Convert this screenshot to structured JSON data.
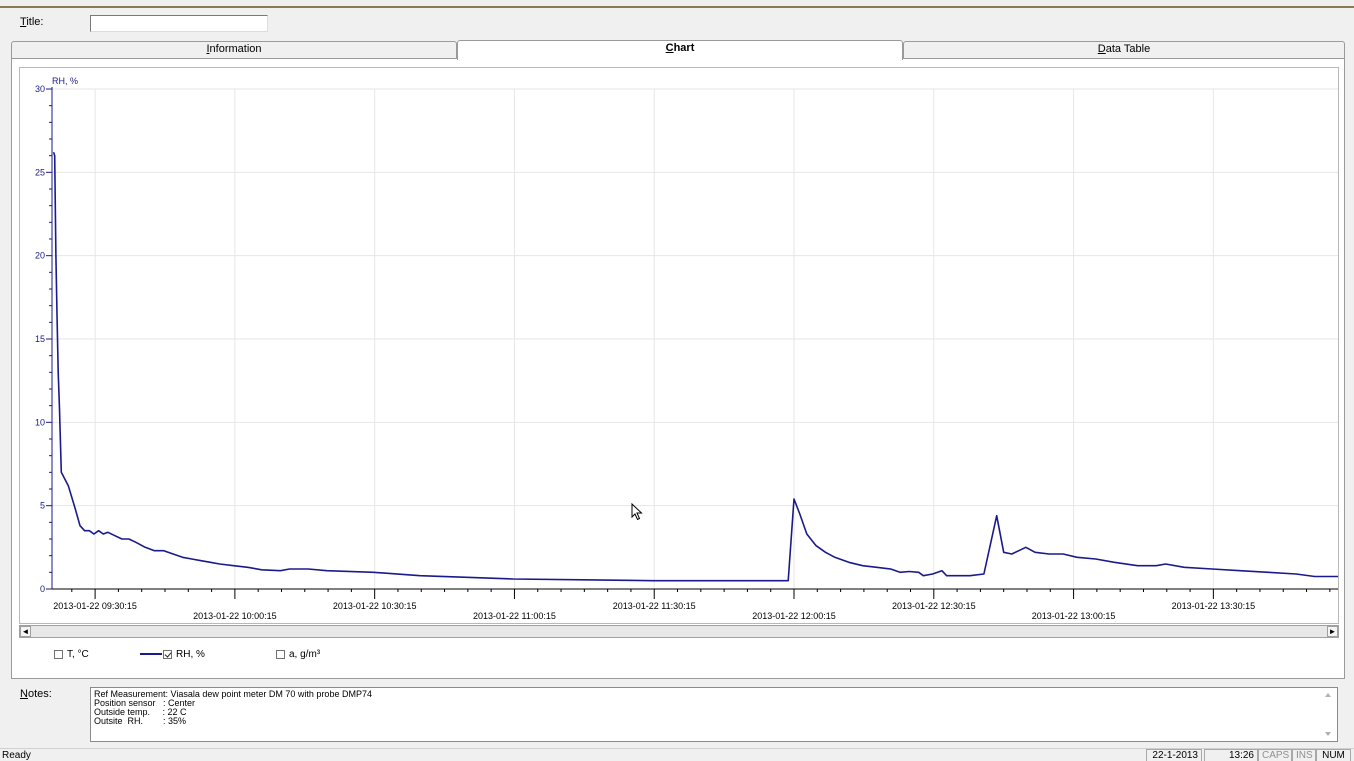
{
  "title_field": {
    "label_first": "T",
    "label_rest": "itle:",
    "value": ""
  },
  "tabs": [
    {
      "first": "I",
      "rest": "nformation",
      "active": false
    },
    {
      "first": "C",
      "rest": "hart",
      "active": true
    },
    {
      "first": "D",
      "rest": "ata Table",
      "active": false
    }
  ],
  "chart_data": {
    "type": "line",
    "ylabel": "RH, %",
    "ylim": [
      0,
      30
    ],
    "yticks": [
      "0",
      "5",
      "10",
      "15",
      "20",
      "25",
      "30"
    ],
    "xlim": [
      "2013-01-22 09:21:00",
      "2013-01-22 13:57:00"
    ],
    "xticks": [
      "2013-01-22 09:30:15",
      "2013-01-22 10:00:15",
      "2013-01-22 10:30:15",
      "2013-01-22 11:00:15",
      "2013-01-22 11:30:15",
      "2013-01-22 12:00:15",
      "2013-01-22 12:30:15",
      "2013-01-22 13:00:15",
      "2013-01-22 13:30:15"
    ],
    "grid": true,
    "series": [
      {
        "name": "RH, %",
        "color": "#1a1a8c",
        "points": [
          [
            "2013-01-22 09:21:20",
            26.2
          ],
          [
            "2013-01-22 09:21:35",
            26.0
          ],
          [
            "2013-01-22 09:21:50",
            20.0
          ],
          [
            "2013-01-22 09:22:05",
            16.5
          ],
          [
            "2013-01-22 09:22:20",
            13.0
          ],
          [
            "2013-01-22 09:22:35",
            11.0
          ],
          [
            "2013-01-22 09:23:00",
            7.0
          ],
          [
            "2013-01-22 09:24:30",
            6.2
          ],
          [
            "2013-01-22 09:26:00",
            4.8
          ],
          [
            "2013-01-22 09:27:00",
            3.8
          ],
          [
            "2013-01-22 09:28:00",
            3.5
          ],
          [
            "2013-01-22 09:29:00",
            3.5
          ],
          [
            "2013-01-22 09:30:00",
            3.3
          ],
          [
            "2013-01-22 09:31:00",
            3.5
          ],
          [
            "2013-01-22 09:32:00",
            3.3
          ],
          [
            "2013-01-22 09:33:00",
            3.4
          ],
          [
            "2013-01-22 09:34:30",
            3.2
          ],
          [
            "2013-01-22 09:36:00",
            3.0
          ],
          [
            "2013-01-22 09:37:30",
            3.0
          ],
          [
            "2013-01-22 09:39:00",
            2.8
          ],
          [
            "2013-01-22 09:41:00",
            2.5
          ],
          [
            "2013-01-22 09:43:00",
            2.3
          ],
          [
            "2013-01-22 09:45:00",
            2.3
          ],
          [
            "2013-01-22 09:47:00",
            2.1
          ],
          [
            "2013-01-22 09:49:00",
            1.9
          ],
          [
            "2013-01-22 09:51:00",
            1.8
          ],
          [
            "2013-01-22 09:53:00",
            1.7
          ],
          [
            "2013-01-22 09:55:00",
            1.6
          ],
          [
            "2013-01-22 09:57:00",
            1.5
          ],
          [
            "2013-01-22 10:00:00",
            1.4
          ],
          [
            "2013-01-22 10:03:00",
            1.3
          ],
          [
            "2013-01-22 10:06:00",
            1.15
          ],
          [
            "2013-01-22 10:10:00",
            1.1
          ],
          [
            "2013-01-22 10:12:00",
            1.2
          ],
          [
            "2013-01-22 10:16:00",
            1.2
          ],
          [
            "2013-01-22 10:20:00",
            1.1
          ],
          [
            "2013-01-22 10:30:00",
            1.0
          ],
          [
            "2013-01-22 10:40:00",
            0.8
          ],
          [
            "2013-01-22 10:50:00",
            0.7
          ],
          [
            "2013-01-22 11:00:00",
            0.6
          ],
          [
            "2013-01-22 11:15:00",
            0.55
          ],
          [
            "2013-01-22 11:30:00",
            0.5
          ],
          [
            "2013-01-22 11:45:00",
            0.5
          ],
          [
            "2013-01-22 11:59:00",
            0.5
          ],
          [
            "2013-01-22 12:00:15",
            5.4
          ],
          [
            "2013-01-22 12:01:30",
            4.5
          ],
          [
            "2013-01-22 12:03:00",
            3.3
          ],
          [
            "2013-01-22 12:05:00",
            2.6
          ],
          [
            "2013-01-22 12:07:00",
            2.2
          ],
          [
            "2013-01-22 12:09:00",
            1.9
          ],
          [
            "2013-01-22 12:12:00",
            1.6
          ],
          [
            "2013-01-22 12:15:00",
            1.4
          ],
          [
            "2013-01-22 12:18:00",
            1.3
          ],
          [
            "2013-01-22 12:21:00",
            1.2
          ],
          [
            "2013-01-22 12:23:00",
            1.0
          ],
          [
            "2013-01-22 12:25:00",
            1.05
          ],
          [
            "2013-01-22 12:27:00",
            1.0
          ],
          [
            "2013-01-22 12:28:00",
            0.8
          ],
          [
            "2013-01-22 12:30:00",
            0.9
          ],
          [
            "2013-01-22 12:32:00",
            1.1
          ],
          [
            "2013-01-22 12:33:00",
            0.8
          ],
          [
            "2013-01-22 12:38:00",
            0.8
          ],
          [
            "2013-01-22 12:41:00",
            0.9
          ],
          [
            "2013-01-22 12:43:45",
            4.4
          ],
          [
            "2013-01-22 12:45:15",
            2.2
          ],
          [
            "2013-01-22 12:47:00",
            2.1
          ],
          [
            "2013-01-22 12:48:30",
            2.3
          ],
          [
            "2013-01-22 12:50:00",
            2.5
          ],
          [
            "2013-01-22 12:52:00",
            2.2
          ],
          [
            "2013-01-22 12:55:00",
            2.1
          ],
          [
            "2013-01-22 12:58:00",
            2.1
          ],
          [
            "2013-01-22 13:01:00",
            1.9
          ],
          [
            "2013-01-22 13:05:00",
            1.8
          ],
          [
            "2013-01-22 13:09:00",
            1.6
          ],
          [
            "2013-01-22 13:14:00",
            1.4
          ],
          [
            "2013-01-22 13:18:00",
            1.4
          ],
          [
            "2013-01-22 13:20:00",
            1.5
          ],
          [
            "2013-01-22 13:24:00",
            1.3
          ],
          [
            "2013-01-22 13:30:00",
            1.2
          ],
          [
            "2013-01-22 13:36:00",
            1.1
          ],
          [
            "2013-01-22 13:42:00",
            1.0
          ],
          [
            "2013-01-22 13:48:00",
            0.9
          ],
          [
            "2013-01-22 13:52:00",
            0.75
          ],
          [
            "2013-01-22 13:57:00",
            0.75
          ]
        ]
      }
    ]
  },
  "legend": [
    {
      "label": "T, °C",
      "checked": false,
      "color": ""
    },
    {
      "label": "RH, %",
      "checked": true,
      "color": "#1a1a8c"
    },
    {
      "label": "a, g/m³",
      "checked": false,
      "color": ""
    }
  ],
  "notes": {
    "label_first": "N",
    "label_rest": "otes:",
    "lines": [
      "Ref Measurement: Viasala dew point meter DM 70 with probe DMP74",
      "Position sensor   : Center",
      "Outside temp.     : 22 C",
      "Outsite  RH.        : 35%"
    ]
  },
  "status": {
    "ready": "Ready",
    "date": "22-1-2013",
    "time": "13:26",
    "caps": "CAPS",
    "ins": "INS",
    "num": "NUM"
  },
  "scroll": {
    "left_arrow": "◄",
    "right_arrow": "►"
  }
}
